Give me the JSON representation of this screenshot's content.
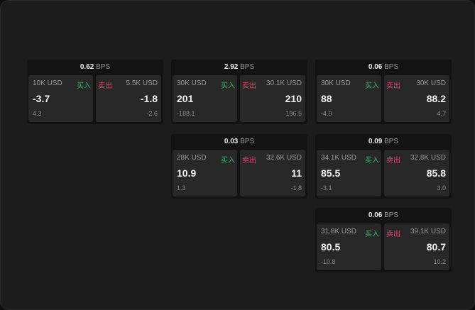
{
  "unit": "BPS",
  "colors": {
    "buy": "#2fb36a",
    "sell": "#e0436e",
    "background": "#1c1c1c"
  },
  "panels": [
    {
      "spread": "0.62",
      "buy": {
        "amount": "10K USD",
        "label": "买入",
        "price": "-3.7",
        "change": "4.3"
      },
      "sell": {
        "amount": "5.5K USD",
        "label": "卖出",
        "price": "-1.8",
        "change": "-2.6"
      }
    },
    {
      "spread": "2.92",
      "buy": {
        "amount": "30K USD",
        "label": "买入",
        "price": "201",
        "change": "-188.1"
      },
      "sell": {
        "amount": "30.1K USD",
        "label": "卖出",
        "price": "210",
        "change": "196.5"
      }
    },
    {
      "spread": "0.06",
      "buy": {
        "amount": "30K USD",
        "label": "买入",
        "price": "88",
        "change": "-4.9"
      },
      "sell": {
        "amount": "30K USD",
        "label": "卖出",
        "price": "88.2",
        "change": "4.7"
      }
    },
    {
      "spread": "0.03",
      "buy": {
        "amount": "28K USD",
        "label": "买入",
        "price": "10.9",
        "change": "1.3"
      },
      "sell": {
        "amount": "32.6K USD",
        "label": "卖出",
        "price": "11",
        "change": "-1.8"
      }
    },
    {
      "spread": "0.09",
      "buy": {
        "amount": "34.1K USD",
        "label": "买入",
        "price": "85.5",
        "change": "-3.1"
      },
      "sell": {
        "amount": "32.8K USD",
        "label": "卖出",
        "price": "85.8",
        "change": "3.0"
      }
    },
    {
      "spread": "0.06",
      "buy": {
        "amount": "31.8K USD",
        "label": "买入",
        "price": "80.5",
        "change": "-10.8"
      },
      "sell": {
        "amount": "39.1K USD",
        "label": "卖出",
        "price": "80.7",
        "change": "10.2"
      }
    }
  ]
}
